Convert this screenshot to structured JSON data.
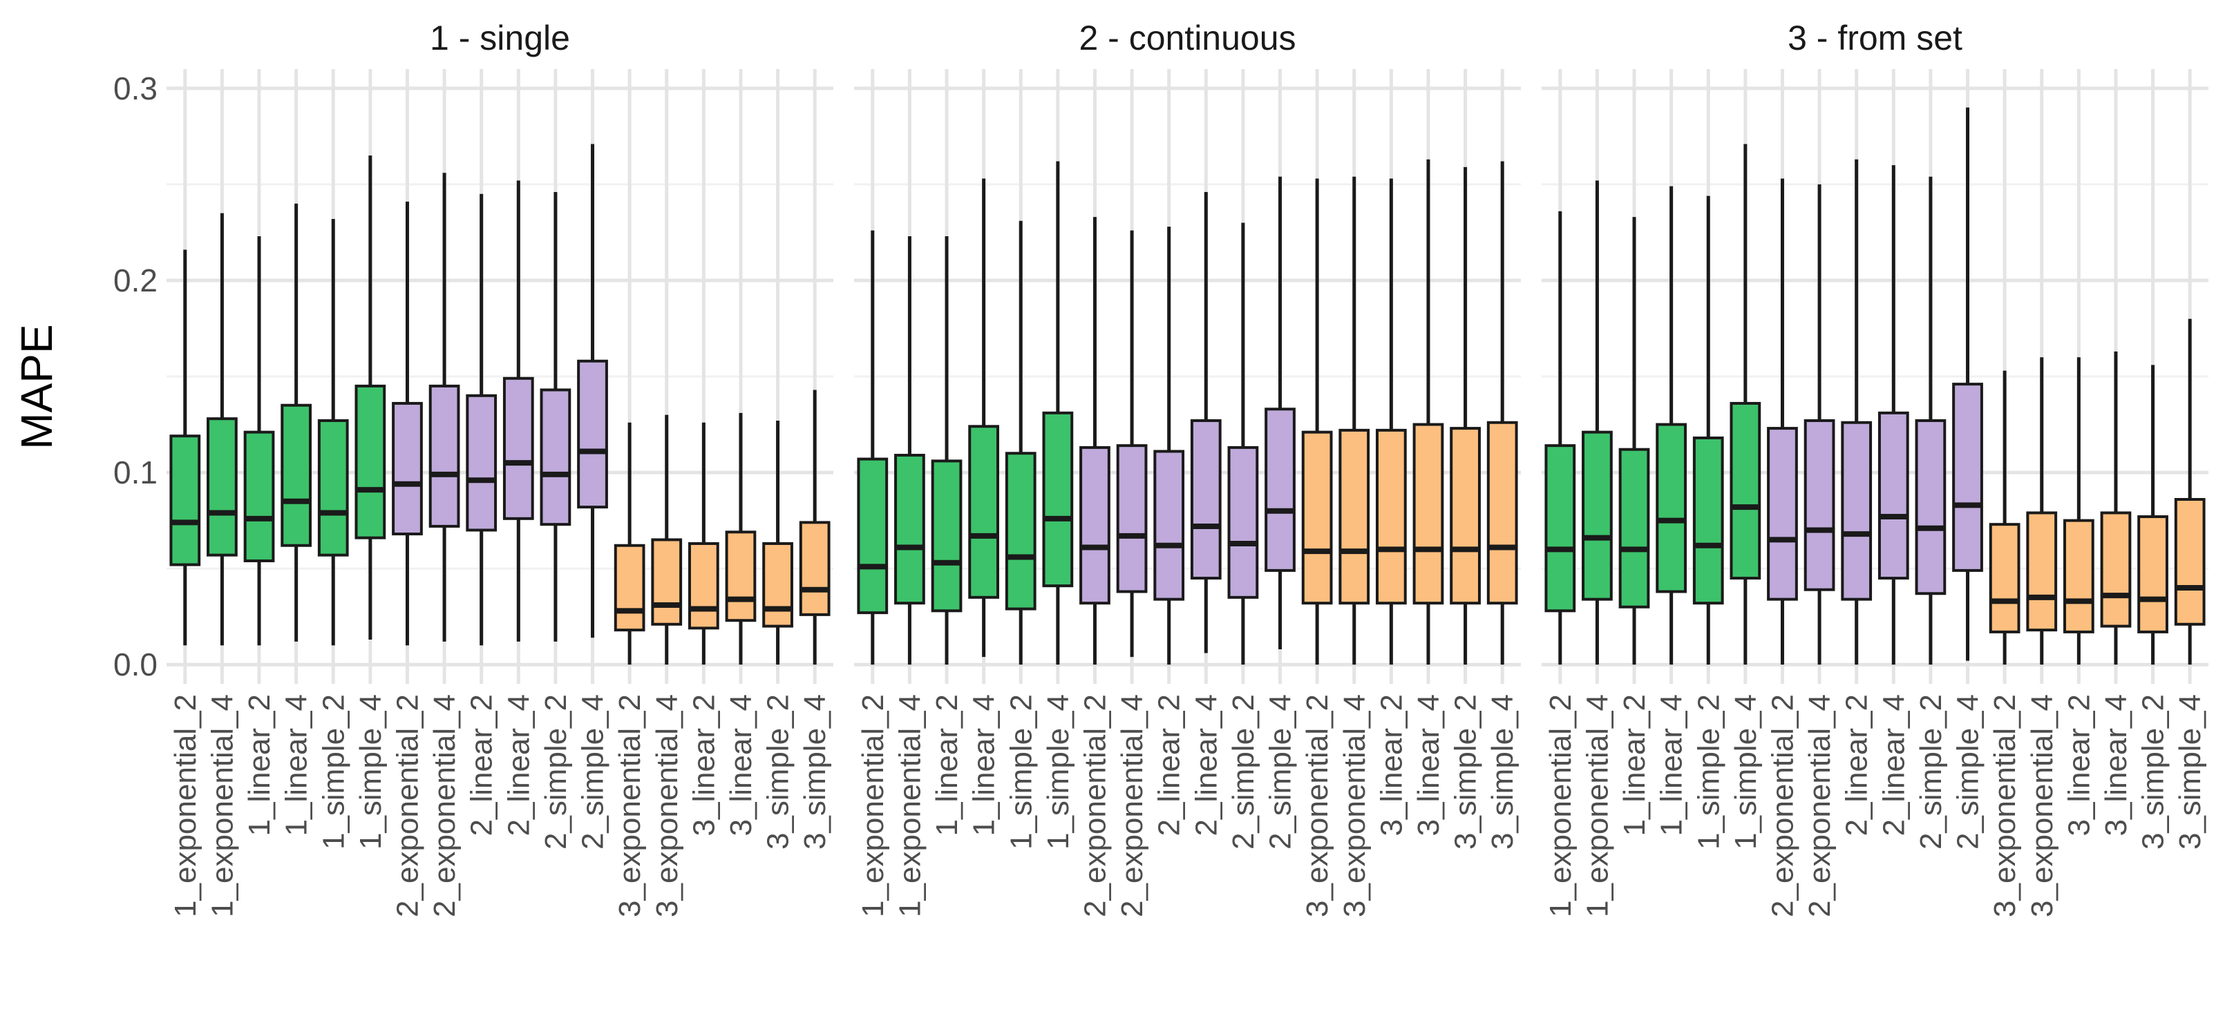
{
  "chart_data": {
    "type": "boxplot",
    "title": "",
    "xlabel": "",
    "ylabel": "MAPE",
    "ylim": [
      -0.01,
      0.31
    ],
    "yticks": [
      0.0,
      0.1,
      0.2,
      0.3
    ],
    "ytick_labels": [
      "0.0",
      "0.1",
      "0.2",
      "0.3"
    ],
    "grid": true,
    "legend": "none",
    "colors": {
      "1": "#3cc26a",
      "2": "#bfaadb",
      "3": "#fdbf7f"
    },
    "categories": [
      "1_exponential_2",
      "1_exponential_4",
      "1_linear_2",
      "1_linear_4",
      "1_simple_2",
      "1_simple_4",
      "2_exponential_2",
      "2_exponential_4",
      "2_linear_2",
      "2_linear_4",
      "2_simple_2",
      "2_simple_4",
      "3_exponential_2",
      "3_exponential_4",
      "3_linear_2",
      "3_linear_4",
      "3_simple_2",
      "3_simple_4"
    ],
    "panels": [
      {
        "title": "1 - single",
        "boxes": [
          {
            "min": 0.01,
            "q1": 0.052,
            "median": 0.074,
            "q3": 0.119,
            "max": 0.216
          },
          {
            "min": 0.01,
            "q1": 0.057,
            "median": 0.079,
            "q3": 0.128,
            "max": 0.235
          },
          {
            "min": 0.01,
            "q1": 0.054,
            "median": 0.076,
            "q3": 0.121,
            "max": 0.223
          },
          {
            "min": 0.012,
            "q1": 0.062,
            "median": 0.085,
            "q3": 0.135,
            "max": 0.24
          },
          {
            "min": 0.01,
            "q1": 0.057,
            "median": 0.079,
            "q3": 0.127,
            "max": 0.232
          },
          {
            "min": 0.013,
            "q1": 0.066,
            "median": 0.091,
            "q3": 0.145,
            "max": 0.265
          },
          {
            "min": 0.01,
            "q1": 0.068,
            "median": 0.094,
            "q3": 0.136,
            "max": 0.241
          },
          {
            "min": 0.012,
            "q1": 0.072,
            "median": 0.099,
            "q3": 0.145,
            "max": 0.256
          },
          {
            "min": 0.01,
            "q1": 0.07,
            "median": 0.096,
            "q3": 0.14,
            "max": 0.245
          },
          {
            "min": 0.012,
            "q1": 0.076,
            "median": 0.105,
            "q3": 0.149,
            "max": 0.252
          },
          {
            "min": 0.012,
            "q1": 0.073,
            "median": 0.099,
            "q3": 0.143,
            "max": 0.246
          },
          {
            "min": 0.014,
            "q1": 0.082,
            "median": 0.111,
            "q3": 0.158,
            "max": 0.271
          },
          {
            "min": 0.0,
            "q1": 0.018,
            "median": 0.028,
            "q3": 0.062,
            "max": 0.126
          },
          {
            "min": 0.0,
            "q1": 0.021,
            "median": 0.031,
            "q3": 0.065,
            "max": 0.13
          },
          {
            "min": 0.0,
            "q1": 0.019,
            "median": 0.029,
            "q3": 0.063,
            "max": 0.126
          },
          {
            "min": 0.0,
            "q1": 0.023,
            "median": 0.034,
            "q3": 0.069,
            "max": 0.131
          },
          {
            "min": 0.0,
            "q1": 0.02,
            "median": 0.029,
            "q3": 0.063,
            "max": 0.127
          },
          {
            "min": 0.0,
            "q1": 0.026,
            "median": 0.039,
            "q3": 0.074,
            "max": 0.143
          }
        ]
      },
      {
        "title": "2 - continuous",
        "boxes": [
          {
            "min": 0.0,
            "q1": 0.027,
            "median": 0.051,
            "q3": 0.107,
            "max": 0.226
          },
          {
            "min": 0.0,
            "q1": 0.032,
            "median": 0.061,
            "q3": 0.109,
            "max": 0.223
          },
          {
            "min": 0.0,
            "q1": 0.028,
            "median": 0.053,
            "q3": 0.106,
            "max": 0.223
          },
          {
            "min": 0.004,
            "q1": 0.035,
            "median": 0.067,
            "q3": 0.124,
            "max": 0.253
          },
          {
            "min": 0.0,
            "q1": 0.029,
            "median": 0.056,
            "q3": 0.11,
            "max": 0.231
          },
          {
            "min": 0.0,
            "q1": 0.041,
            "median": 0.076,
            "q3": 0.131,
            "max": 0.262
          },
          {
            "min": 0.0,
            "q1": 0.032,
            "median": 0.061,
            "q3": 0.113,
            "max": 0.233
          },
          {
            "min": 0.004,
            "q1": 0.038,
            "median": 0.067,
            "q3": 0.114,
            "max": 0.226
          },
          {
            "min": 0.0,
            "q1": 0.034,
            "median": 0.062,
            "q3": 0.111,
            "max": 0.228
          },
          {
            "min": 0.006,
            "q1": 0.045,
            "median": 0.072,
            "q3": 0.127,
            "max": 0.246
          },
          {
            "min": 0.0,
            "q1": 0.035,
            "median": 0.063,
            "q3": 0.113,
            "max": 0.23
          },
          {
            "min": 0.008,
            "q1": 0.049,
            "median": 0.08,
            "q3": 0.133,
            "max": 0.254
          },
          {
            "min": 0.0,
            "q1": 0.032,
            "median": 0.059,
            "q3": 0.121,
            "max": 0.253
          },
          {
            "min": 0.0,
            "q1": 0.032,
            "median": 0.059,
            "q3": 0.122,
            "max": 0.254
          },
          {
            "min": 0.0,
            "q1": 0.032,
            "median": 0.06,
            "q3": 0.122,
            "max": 0.253
          },
          {
            "min": 0.0,
            "q1": 0.032,
            "median": 0.06,
            "q3": 0.125,
            "max": 0.263
          },
          {
            "min": 0.0,
            "q1": 0.032,
            "median": 0.06,
            "q3": 0.123,
            "max": 0.259
          },
          {
            "min": 0.0,
            "q1": 0.032,
            "median": 0.061,
            "q3": 0.126,
            "max": 0.262
          }
        ]
      },
      {
        "title": "3 - from set",
        "boxes": [
          {
            "min": 0.0,
            "q1": 0.028,
            "median": 0.06,
            "q3": 0.114,
            "max": 0.236
          },
          {
            "min": 0.0,
            "q1": 0.034,
            "median": 0.066,
            "q3": 0.121,
            "max": 0.252
          },
          {
            "min": 0.0,
            "q1": 0.03,
            "median": 0.06,
            "q3": 0.112,
            "max": 0.233
          },
          {
            "min": 0.0,
            "q1": 0.038,
            "median": 0.075,
            "q3": 0.125,
            "max": 0.249
          },
          {
            "min": 0.0,
            "q1": 0.032,
            "median": 0.062,
            "q3": 0.118,
            "max": 0.244
          },
          {
            "min": 0.0,
            "q1": 0.045,
            "median": 0.082,
            "q3": 0.136,
            "max": 0.271
          },
          {
            "min": 0.0,
            "q1": 0.034,
            "median": 0.065,
            "q3": 0.123,
            "max": 0.253
          },
          {
            "min": 0.0,
            "q1": 0.039,
            "median": 0.07,
            "q3": 0.127,
            "max": 0.25
          },
          {
            "min": 0.0,
            "q1": 0.034,
            "median": 0.068,
            "q3": 0.126,
            "max": 0.263
          },
          {
            "min": 0.0,
            "q1": 0.045,
            "median": 0.077,
            "q3": 0.131,
            "max": 0.26
          },
          {
            "min": 0.0,
            "q1": 0.037,
            "median": 0.071,
            "q3": 0.127,
            "max": 0.254
          },
          {
            "min": 0.002,
            "q1": 0.049,
            "median": 0.083,
            "q3": 0.146,
            "max": 0.29
          },
          {
            "min": 0.0,
            "q1": 0.017,
            "median": 0.033,
            "q3": 0.073,
            "max": 0.153
          },
          {
            "min": 0.0,
            "q1": 0.018,
            "median": 0.035,
            "q3": 0.079,
            "max": 0.16
          },
          {
            "min": 0.0,
            "q1": 0.017,
            "median": 0.033,
            "q3": 0.075,
            "max": 0.16
          },
          {
            "min": 0.0,
            "q1": 0.02,
            "median": 0.036,
            "q3": 0.079,
            "max": 0.163
          },
          {
            "min": 0.0,
            "q1": 0.017,
            "median": 0.034,
            "q3": 0.077,
            "max": 0.156
          },
          {
            "min": 0.0,
            "q1": 0.021,
            "median": 0.04,
            "q3": 0.086,
            "max": 0.18
          }
        ]
      }
    ]
  }
}
